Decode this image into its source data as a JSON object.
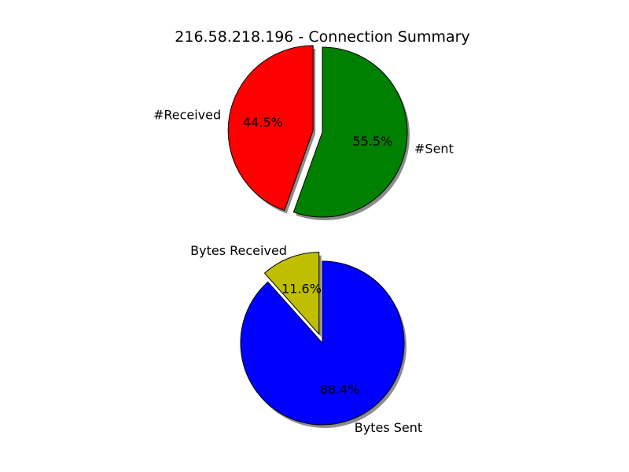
{
  "title": "216.58.218.196 - Connection Summary",
  "chart_data": [
    {
      "type": "pie",
      "slices": [
        {
          "label": "#Received",
          "value": 44.5,
          "pct_label": "44.5%",
          "color": "#ff0000",
          "exploded": true
        },
        {
          "label": "#Sent",
          "value": 55.5,
          "pct_label": "55.5%",
          "color": "#008000",
          "exploded": false
        }
      ]
    },
    {
      "type": "pie",
      "slices": [
        {
          "label": "Bytes Received",
          "value": 11.6,
          "pct_label": "11.6%",
          "color": "#bfbf00",
          "exploded": true
        },
        {
          "label": "Bytes Sent",
          "value": 88.4,
          "pct_label": "88.4%",
          "color": "#0000ff",
          "exploded": false
        }
      ]
    }
  ]
}
